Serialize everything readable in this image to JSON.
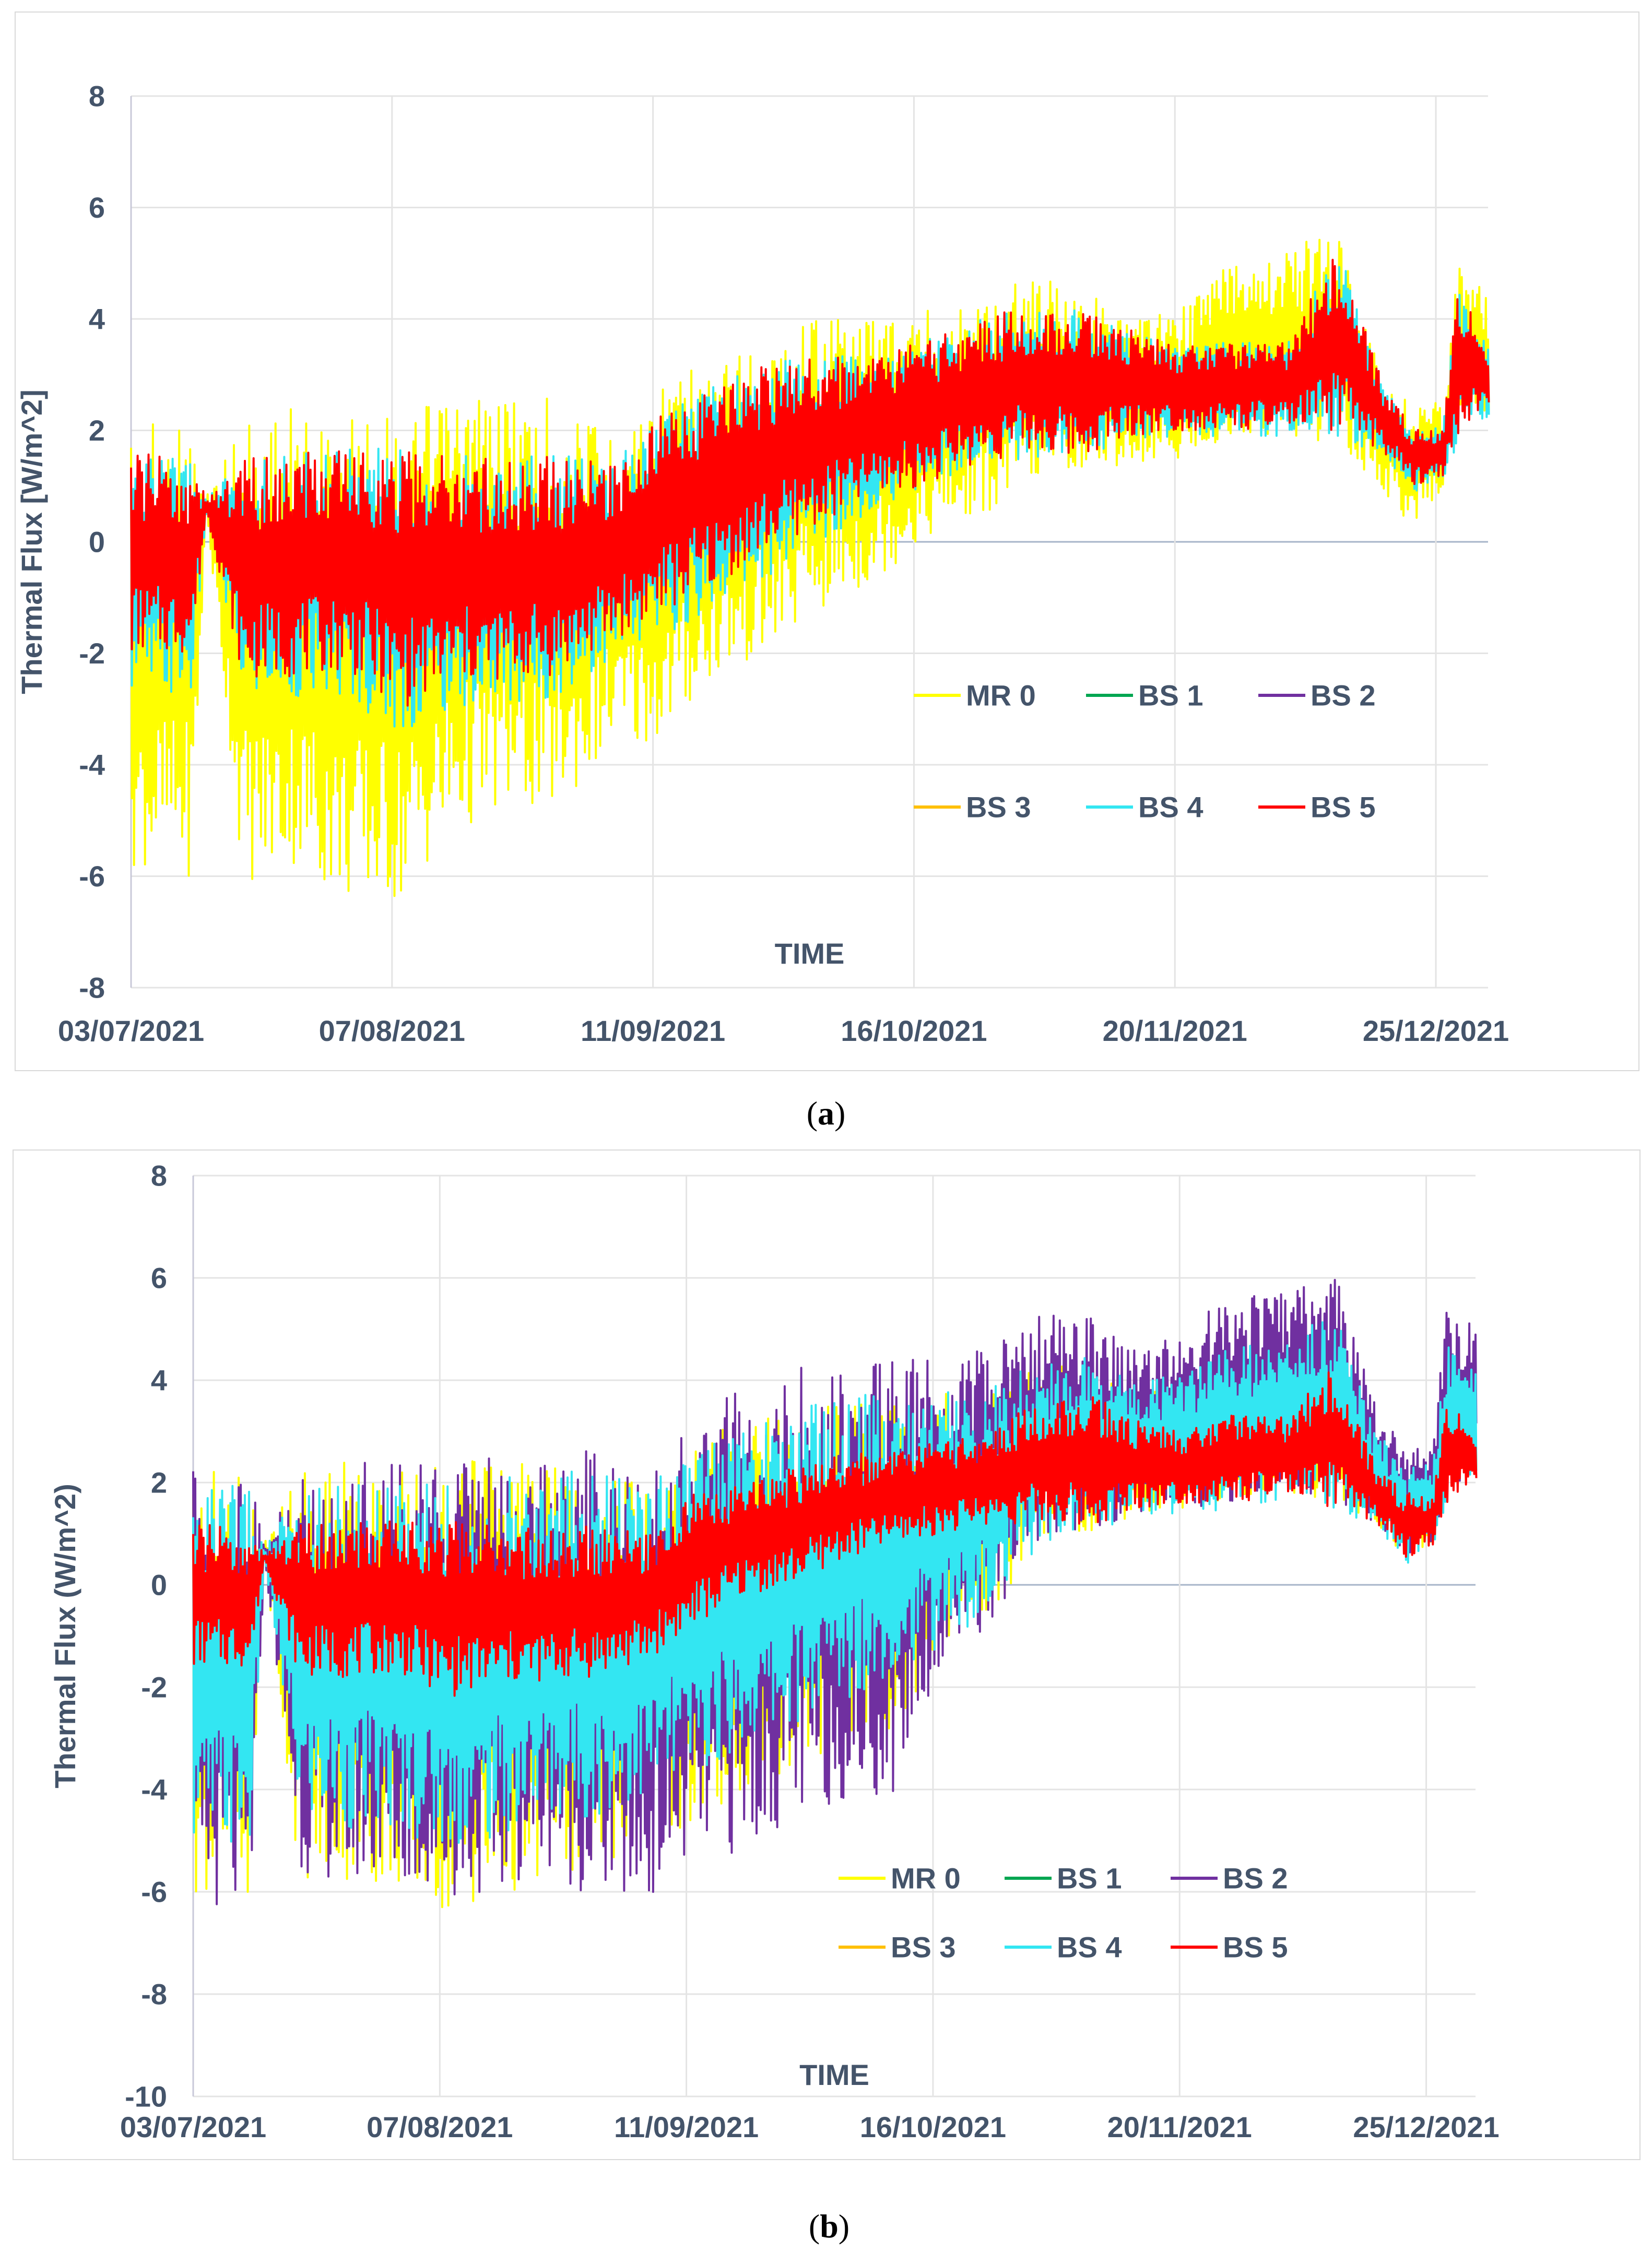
{
  "captions": {
    "a_label": "a",
    "b_label": "b"
  },
  "chart_data": [
    {
      "id": "a",
      "type": "line",
      "xlabel": "TIME",
      "ylabel": "Thermal Flux [W/m^2]",
      "ylim": [
        -8,
        8
      ],
      "yticks": [
        8,
        6,
        4,
        2,
        0,
        -2,
        -4,
        -6,
        -8
      ],
      "x_tick_labels": [
        "03/07/2021",
        "07/08/2021",
        "11/09/2021",
        "16/10/2021",
        "20/11/2021",
        "25/12/2021"
      ],
      "x_range_days": [
        0,
        182
      ],
      "tick_step_days": 35,
      "grid": true,
      "legend": {
        "placement": "lower-right",
        "entries": [
          "MR 0",
          "BS 1",
          "BS 2",
          "BS 3",
          "BS 4",
          "BS 5"
        ]
      },
      "series_colors": {
        "MR 0": "#ffff00",
        "BS 1": "#00a651",
        "BS 2": "#7030a0",
        "BS 3": "#ffc000",
        "BS 4": "#33e6f2",
        "BS 5": "#ff0000"
      },
      "envelope": {
        "day": [
          0,
          8,
          10,
          15,
          22,
          29,
          36,
          43,
          50,
          57,
          64,
          71,
          78,
          85,
          92,
          99,
          106,
          113,
          120,
          127,
          134,
          141,
          148,
          155,
          162,
          168,
          172,
          176,
          178,
          182
        ],
        "red_hi": [
          1.6,
          1.5,
          0.8,
          1.5,
          1.6,
          1.7,
          1.7,
          1.6,
          1.5,
          1.6,
          1.4,
          2.3,
          2.8,
          3.2,
          3.4,
          3.3,
          3.6,
          4.0,
          4.2,
          4.2,
          3.8,
          3.5,
          3.6,
          3.6,
          5.3,
          2.8,
          2.0,
          2.1,
          4.6,
          3.5
        ],
        "red_lo": [
          -2.0,
          -2.0,
          0.5,
          -2.5,
          -2.4,
          -2.3,
          -3.0,
          -2.6,
          -2.5,
          -2.4,
          -1.8,
          -1.3,
          -0.8,
          -0.2,
          0.3,
          0.8,
          1.0,
          1.4,
          1.6,
          1.5,
          1.9,
          2.0,
          2.0,
          2.0,
          2.0,
          1.6,
          1.0,
          1.2,
          1.9,
          2.3
        ],
        "cyan_lo": [
          -2.8,
          -2.8,
          0.5,
          -2.8,
          -2.8,
          -2.8,
          -3.5,
          -3.0,
          -3.0,
          -2.8,
          -2.2,
          -1.8,
          -1.2,
          -0.7,
          0.0,
          0.5,
          1.0,
          1.3,
          1.5,
          1.5,
          1.8,
          1.9,
          1.9,
          1.9,
          1.9,
          1.5,
          0.9,
          1.1,
          1.8,
          2.2
        ],
        "yellow_hi": [
          2.2,
          2.1,
          0.8,
          2.3,
          2.4,
          2.3,
          2.3,
          2.6,
          2.8,
          2.6,
          2.0,
          2.9,
          3.2,
          3.6,
          4.2,
          4.1,
          4.2,
          4.3,
          4.8,
          4.7,
          4.0,
          4.2,
          5.2,
          5.2,
          5.7,
          2.8,
          2.5,
          2.5,
          5.0,
          4.4
        ],
        "yellow_lo": [
          -5.8,
          -6.0,
          0.5,
          -6.2,
          -5.8,
          -6.5,
          -6.5,
          -5.3,
          -4.8,
          -4.8,
          -3.8,
          -3.6,
          -2.5,
          -2.0,
          -1.3,
          -0.8,
          0.0,
          0.4,
          1.0,
          1.3,
          1.4,
          1.5,
          1.8,
          1.9,
          1.7,
          0.9,
          0.2,
          1.0,
          2.0,
          2.2
        ]
      }
    },
    {
      "id": "b",
      "type": "line",
      "xlabel": "TIME",
      "ylabel": "Thermal Flux (W/m^2)",
      "ylim": [
        -10,
        8
      ],
      "yticks": [
        8,
        6,
        4,
        2,
        0,
        -2,
        -4,
        -6,
        -8,
        -10
      ],
      "x_tick_labels": [
        "03/07/2021",
        "07/08/2021",
        "11/09/2021",
        "16/10/2021",
        "20/11/2021",
        "25/12/2021"
      ],
      "x_range_days": [
        0,
        182
      ],
      "tick_step_days": 35,
      "grid": true,
      "legend": {
        "placement": "lower-right",
        "entries": [
          "MR 0",
          "BS 1",
          "BS 2",
          "BS 3",
          "BS 4",
          "BS 5"
        ]
      },
      "series_colors": {
        "MR 0": "#ffff00",
        "BS 1": "#00a651",
        "BS 2": "#7030a0",
        "BS 3": "#ffc000",
        "BS 4": "#33e6f2",
        "BS 5": "#ff0000"
      },
      "envelope": {
        "day": [
          0,
          8,
          10,
          15,
          22,
          29,
          36,
          43,
          50,
          57,
          64,
          71,
          78,
          85,
          92,
          99,
          106,
          113,
          120,
          127,
          134,
          141,
          148,
          155,
          162,
          168,
          172,
          176,
          178,
          182
        ],
        "purple_hi": [
          2.3,
          2.2,
          0.8,
          2.4,
          2.5,
          2.4,
          2.5,
          2.6,
          2.8,
          2.6,
          2.2,
          3.4,
          3.8,
          4.2,
          4.5,
          4.4,
          4.5,
          4.6,
          5.3,
          5.3,
          4.6,
          5.0,
          5.8,
          5.8,
          6.2,
          3.4,
          2.8,
          2.8,
          5.7,
          5.0
        ],
        "purple_lo": [
          -6.2,
          -6.6,
          0.5,
          -5.6,
          -5.8,
          -5.9,
          -6.2,
          -6.0,
          -5.5,
          -6.2,
          -6.2,
          -5.4,
          -5.2,
          -4.6,
          -4.2,
          -4.2,
          -1.5,
          -0.8,
          0.8,
          1.0,
          1.4,
          1.5,
          1.6,
          1.8,
          1.6,
          1.2,
          0.5,
          0.8,
          1.8,
          2.2
        ],
        "cyan_hi": [
          2.0,
          2.0,
          0.7,
          2.0,
          2.0,
          2.0,
          2.0,
          2.1,
          2.3,
          2.2,
          2.0,
          2.7,
          3.0,
          3.4,
          3.8,
          3.7,
          3.8,
          3.9,
          4.4,
          4.5,
          4.0,
          4.2,
          4.7,
          4.8,
          5.4,
          3.0,
          2.4,
          2.4,
          4.8,
          4.2
        ],
        "cyan_lo": [
          -5.2,
          -5.2,
          0.5,
          -4.6,
          -4.8,
          -4.8,
          -5.2,
          -5.0,
          -4.6,
          -4.6,
          -4.2,
          -3.8,
          -3.2,
          -2.8,
          -2.3,
          -1.8,
          -1.2,
          -0.6,
          0.8,
          1.0,
          1.3,
          1.4,
          1.5,
          1.7,
          1.5,
          1.1,
          0.4,
          0.7,
          1.7,
          2.1
        ],
        "red_hi": [
          1.2,
          1.1,
          0.6,
          1.2,
          1.2,
          1.3,
          1.3,
          1.2,
          1.1,
          1.2,
          1.0,
          1.8,
          2.0,
          2.3,
          2.6,
          2.6,
          2.8,
          3.0,
          3.6,
          3.8,
          3.2,
          3.0,
          3.4,
          3.3,
          4.3,
          2.3,
          1.8,
          1.8,
          3.6,
          3.0
        ],
        "red_lo": [
          -1.6,
          -1.6,
          0.5,
          -1.8,
          -1.8,
          -1.7,
          -2.2,
          -2.0,
          -1.9,
          -1.8,
          -1.5,
          -0.8,
          -0.2,
          0.0,
          0.5,
          0.8,
          1.0,
          1.2,
          1.2,
          1.1,
          1.5,
          1.6,
          1.6,
          1.7,
          1.5,
          1.2,
          0.5,
          0.8,
          1.6,
          1.9
        ],
        "yellow_hi": [
          2.3,
          2.2,
          0.8,
          2.4,
          2.4,
          2.3,
          2.4,
          2.5,
          2.6,
          2.5,
          2.0,
          2.8,
          3.2,
          3.5,
          3.8,
          3.7,
          3.8,
          3.9,
          4.3,
          4.4,
          3.8,
          4.0,
          4.5,
          4.6,
          5.2,
          2.8,
          2.2,
          2.3,
          4.5,
          4.0
        ],
        "yellow_lo": [
          -6.0,
          -6.0,
          0.5,
          -5.8,
          -5.8,
          -6.0,
          -6.5,
          -6.2,
          -5.8,
          -5.6,
          -5.0,
          -4.8,
          -4.2,
          -3.8,
          -3.3,
          -3.0,
          -1.2,
          -0.6,
          0.8,
          1.0,
          1.4,
          1.5,
          1.6,
          1.8,
          1.6,
          1.2,
          0.5,
          0.8,
          1.8,
          2.2
        ]
      }
    }
  ]
}
